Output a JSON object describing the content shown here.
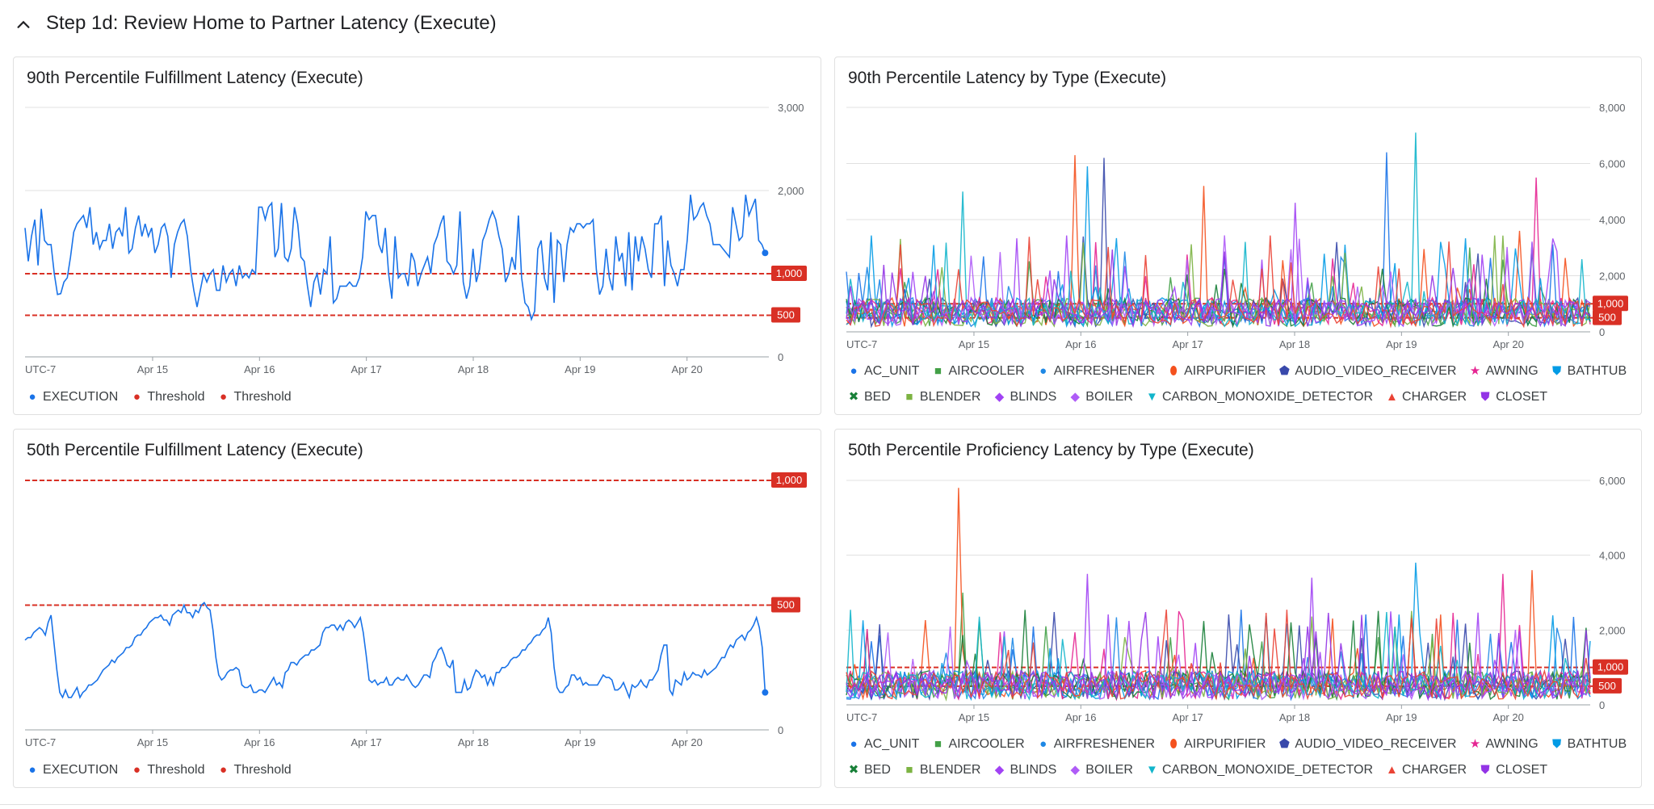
{
  "section": {
    "title": "Step 1d: Review Home to Partner Latency (Execute)"
  },
  "charts": [
    {
      "title": "90th Percentile Fulfillment Latency (Execute)",
      "legend": [
        {
          "label": "EXECUTION",
          "color": "#1a73e8",
          "icon": "circle-icon"
        },
        {
          "label": "Threshold",
          "color": "#d93025",
          "icon": "circle-icon"
        },
        {
          "label": "Threshold",
          "color": "#d93025",
          "icon": "circle-icon"
        }
      ]
    },
    {
      "title": "90th Percentile Latency by Type (Execute)"
    },
    {
      "title": "50th Percentile Fulfillment Latency (Execute)",
      "legend": [
        {
          "label": "EXECUTION",
          "color": "#1a73e8",
          "icon": "circle-icon"
        },
        {
          "label": "Threshold",
          "color": "#d93025",
          "icon": "circle-icon"
        },
        {
          "label": "Threshold",
          "color": "#d93025",
          "icon": "circle-icon"
        }
      ]
    },
    {
      "title": "50th Percentile Proficiency Latency by Type (Execute)"
    }
  ],
  "type_legend": [
    {
      "label": "AC_UNIT",
      "color": "#1a73e8",
      "icon": "circle-icon"
    },
    {
      "label": "AIRCOOLER",
      "color": "#43a047",
      "icon": "square-icon"
    },
    {
      "label": "AIRFRESHENER",
      "color": "#1e88e5",
      "icon": "circle-icon"
    },
    {
      "label": "AIRPURIFIER",
      "color": "#f4511e",
      "icon": "pin-icon"
    },
    {
      "label": "AUDIO_VIDEO_RECEIVER",
      "color": "#3949ab",
      "icon": "pentagon-icon"
    },
    {
      "label": "AWNING",
      "color": "#e52592",
      "icon": "star-icon"
    },
    {
      "label": "BATHTUB",
      "color": "#039be5",
      "icon": "shield-icon"
    },
    {
      "label": "BED",
      "color": "#188038",
      "icon": "cross-icon"
    },
    {
      "label": "BLENDER",
      "color": "#7cb342",
      "icon": "square-icon"
    },
    {
      "label": "BLINDS",
      "color": "#a142f4",
      "icon": "diamond-icon"
    },
    {
      "label": "BOILER",
      "color": "#af5cf7",
      "icon": "diamond-icon"
    },
    {
      "label": "CARBON_MONOXIDE_DETECTOR",
      "color": "#12b5cb",
      "icon": "triangle-down-icon"
    },
    {
      "label": "CHARGER",
      "color": "#ea4335",
      "icon": "triangle-up-icon"
    },
    {
      "label": "CLOSET",
      "color": "#9334e6",
      "icon": "shield-icon"
    }
  ],
  "chart_data": [
    {
      "type": "line",
      "title": "90th Percentile Fulfillment Latency (Execute)",
      "timezone": "UTC-7",
      "x_ticks": [
        "Apr 15",
        "Apr 16",
        "Apr 17",
        "Apr 18",
        "Apr 19",
        "Apr 20"
      ],
      "y_ticks": [
        "3,000",
        "2,000",
        "1,000",
        "0"
      ],
      "ylim": [
        0,
        3000
      ],
      "thresholds": [
        {
          "value": 1000,
          "label": "1,000"
        },
        {
          "value": 500,
          "label": "500"
        }
      ],
      "series": [
        {
          "name": "EXECUTION",
          "color": "#1a73e8",
          "values": [
            1550,
            1150,
            1450,
            1650,
            1100,
            1780,
            1400,
            1350,
            1350,
            1000,
            750,
            760,
            900,
            950,
            1200,
            1500,
            1600,
            1650,
            1700,
            1550,
            1800,
            1350,
            1500,
            1300,
            1400,
            1400,
            1600,
            1300,
            1500,
            1550,
            1450,
            1800,
            1250,
            1300,
            1550,
            1700,
            1450,
            1600,
            1450,
            1550,
            1250,
            1350,
            1550,
            1600,
            1450,
            950,
            1350,
            1500,
            1600,
            1650,
            1450,
            1050,
            800,
            600,
            800,
            1000,
            900,
            1000,
            1050,
            800,
            800,
            1100,
            900,
            1000,
            1050,
            850,
            1100,
            950,
            1000,
            950,
            1050,
            1000,
            1800,
            1800,
            1650,
            1800,
            1850,
            1200,
            1300,
            1850,
            1200,
            1150,
            1300,
            1800,
            1600,
            1200,
            1150,
            850,
            600,
            900,
            1000,
            750,
            1050,
            1000,
            1450,
            650,
            700,
            850,
            850,
            850,
            900,
            850,
            850,
            950,
            1200,
            1750,
            1650,
            1700,
            1700,
            1350,
            1250,
            1550,
            1000,
            700,
            1450,
            950,
            1000,
            1000,
            850,
            1250,
            1150,
            850,
            1000,
            1100,
            1200,
            1000,
            1350,
            1450,
            1600,
            1700,
            1150,
            1100,
            1000,
            1100,
            1750,
            900,
            700,
            850,
            1300,
            900,
            1050,
            1400,
            1500,
            1650,
            1750,
            1650,
            1450,
            1300,
            900,
            1000,
            1200,
            1050,
            1700,
            950,
            650,
            600,
            450,
            550,
            1300,
            1400,
            950,
            800,
            1500,
            650,
            1400,
            1350,
            900,
            1350,
            1550,
            1500,
            1600,
            1600,
            1550,
            1600,
            1600,
            1650,
            1050,
            750,
            850,
            1300,
            950,
            800,
            1450,
            1150,
            1250,
            850,
            1500,
            800,
            1450,
            1150,
            1450,
            1300,
            1050,
            950,
            1600,
            1600,
            1700,
            850,
            1400,
            1100,
            1000,
            850,
            1050,
            1050,
            1400,
            1950,
            1650,
            1700,
            1800,
            1850,
            1700,
            1600,
            1350,
            1350,
            1350,
            1300,
            1250,
            1200,
            1800,
            1600,
            1400,
            1450,
            1950,
            1700,
            1800,
            1900,
            1400,
            1350,
            1250
          ]
        }
      ]
    },
    {
      "type": "line",
      "title": "90th Percentile Latency by Type (Execute)",
      "timezone": "UTC-7",
      "x_ticks": [
        "Apr 15",
        "Apr 16",
        "Apr 17",
        "Apr 18",
        "Apr 19",
        "Apr 20"
      ],
      "y_ticks": [
        "8,000",
        "6,000",
        "4,000",
        "2,000",
        "0"
      ],
      "ylim": [
        0,
        8000
      ],
      "thresholds": [
        {
          "value": 1000,
          "label": "1,000"
        },
        {
          "value": 500,
          "label": "500"
        }
      ],
      "series_names": [
        "AC_UNIT",
        "AIRCOOLER",
        "AIRFRESHENER",
        "AIRPURIFIER",
        "AUDIO_VIDEO_RECEIVER",
        "AWNING",
        "BATHTUB",
        "BED",
        "BLENDER",
        "BLINDS",
        "BOILER",
        "CARBON_MONOXIDE_DETECTOR",
        "CHARGER",
        "CLOSET"
      ],
      "peaks": [
        {
          "series": "AC_UNIT",
          "x": "Apr 19",
          "value": 6400
        },
        {
          "series": "CARBON_MONOXIDE_DETECTOR",
          "x": "Apr 19",
          "value": 7100
        },
        {
          "series": "AIRPURIFIER",
          "x": "Apr 16",
          "value": 6300
        },
        {
          "series": "AUDIO_VIDEO_RECEIVER",
          "x": "Apr 16",
          "value": 6200
        },
        {
          "series": "BATHTUB",
          "x": "Apr 16",
          "value": 5900
        },
        {
          "series": "CARBON_MONOXIDE_DETECTOR",
          "x": "Apr 15",
          "value": 5000
        },
        {
          "series": "AIRPURIFIER",
          "x": "Apr 17",
          "value": 5200
        },
        {
          "series": "BLINDS",
          "x": "Apr 18",
          "value": 4600
        },
        {
          "series": "AWNING",
          "x": "Apr 20",
          "value": 5500
        },
        {
          "series": "AIRPURIFIER",
          "x": "Apr 20",
          "value": 3600
        }
      ]
    },
    {
      "type": "line",
      "title": "50th Percentile Fulfillment Latency (Execute)",
      "timezone": "UTC-7",
      "x_ticks": [
        "Apr 15",
        "Apr 16",
        "Apr 17",
        "Apr 18",
        "Apr 19",
        "Apr 20"
      ],
      "y_ticks": [
        "1,000",
        "500",
        "0"
      ],
      "ylim": [
        0,
        1000
      ],
      "thresholds": [
        {
          "value": 1000,
          "label": "1,000"
        },
        {
          "value": 500,
          "label": "500"
        }
      ],
      "series": [
        {
          "name": "EXECUTION",
          "color": "#1a73e8",
          "values": [
            360,
            370,
            370,
            390,
            400,
            410,
            400,
            380,
            430,
            460,
            350,
            240,
            150,
            130,
            160,
            130,
            130,
            150,
            170,
            130,
            150,
            160,
            180,
            180,
            190,
            200,
            220,
            240,
            250,
            260,
            280,
            270,
            290,
            300,
            310,
            330,
            330,
            340,
            370,
            380,
            380,
            400,
            410,
            430,
            440,
            450,
            450,
            460,
            440,
            440,
            420,
            460,
            470,
            480,
            470,
            500,
            470,
            470,
            450,
            480,
            470,
            500,
            510,
            490,
            480,
            400,
            290,
            220,
            200,
            210,
            230,
            240,
            240,
            250,
            240,
            180,
            170,
            170,
            180,
            150,
            150,
            160,
            160,
            150,
            170,
            190,
            210,
            180,
            190,
            170,
            230,
            240,
            270,
            270,
            260,
            280,
            290,
            300,
            300,
            320,
            320,
            330,
            340,
            390,
            410,
            410,
            420,
            420,
            400,
            420,
            400,
            430,
            440,
            430,
            410,
            430,
            450,
            390,
            300,
            200,
            190,
            200,
            180,
            190,
            190,
            210,
            180,
            180,
            200,
            210,
            200,
            200,
            220,
            200,
            180,
            170,
            180,
            200,
            220,
            220,
            210,
            270,
            290,
            320,
            330,
            300,
            260,
            250,
            280,
            150,
            150,
            150,
            200,
            160,
            170,
            210,
            240,
            230,
            210,
            220,
            180,
            210,
            180,
            230,
            230,
            250,
            250,
            260,
            280,
            290,
            290,
            300,
            320,
            320,
            340,
            350,
            370,
            380,
            380,
            400,
            410,
            450,
            390,
            250,
            170,
            150,
            150,
            170,
            180,
            220,
            220,
            200,
            210,
            180,
            190,
            180,
            180,
            180,
            180,
            200,
            220,
            210,
            210,
            200,
            160,
            160,
            170,
            190,
            160,
            130,
            180,
            170,
            180,
            200,
            180,
            170,
            200,
            200,
            220,
            240,
            300,
            340,
            340,
            160,
            140,
            200,
            190,
            180,
            230,
            200,
            210,
            230,
            220,
            220,
            210,
            240,
            220,
            230,
            240,
            250,
            270,
            290,
            290,
            320,
            340,
            330,
            360,
            370,
            380,
            360,
            390,
            400,
            420,
            450,
            410,
            330,
            150
          ]
        }
      ]
    },
    {
      "type": "line",
      "title": "50th Percentile Proficiency Latency by Type (Execute)",
      "timezone": "UTC-7",
      "x_ticks": [
        "Apr 15",
        "Apr 16",
        "Apr 17",
        "Apr 18",
        "Apr 19",
        "Apr 20"
      ],
      "y_ticks": [
        "6,000",
        "4,000",
        "2,000",
        "0"
      ],
      "ylim": [
        0,
        6000
      ],
      "thresholds": [
        {
          "value": 1000,
          "label": "1,000"
        },
        {
          "value": 500,
          "label": "500"
        }
      ],
      "series_names": [
        "AC_UNIT",
        "AIRCOOLER",
        "AIRFRESHENER",
        "AIRPURIFIER",
        "AUDIO_VIDEO_RECEIVER",
        "AWNING",
        "BATHTUB",
        "BED",
        "BLENDER",
        "BLINDS",
        "BOILER",
        "CARBON_MONOXIDE_DETECTOR",
        "CHARGER",
        "CLOSET"
      ],
      "peaks": [
        {
          "series": "AIRPURIFIER",
          "x": "Apr 15",
          "value": 5800
        },
        {
          "series": "BATHTUB",
          "x": "Apr 19",
          "value": 3800
        },
        {
          "series": "AWNING",
          "x": "Apr 20",
          "value": 3500
        },
        {
          "series": "AIRPURIFIER",
          "x": "Apr 20",
          "value": 3600
        },
        {
          "series": "BLINDS",
          "x": "Apr 16",
          "value": 3500
        },
        {
          "series": "AIRCOOLER",
          "x": "Apr 15",
          "value": 3000
        },
        {
          "series": "BLINDS",
          "x": "Apr 18",
          "value": 3400
        }
      ]
    }
  ]
}
